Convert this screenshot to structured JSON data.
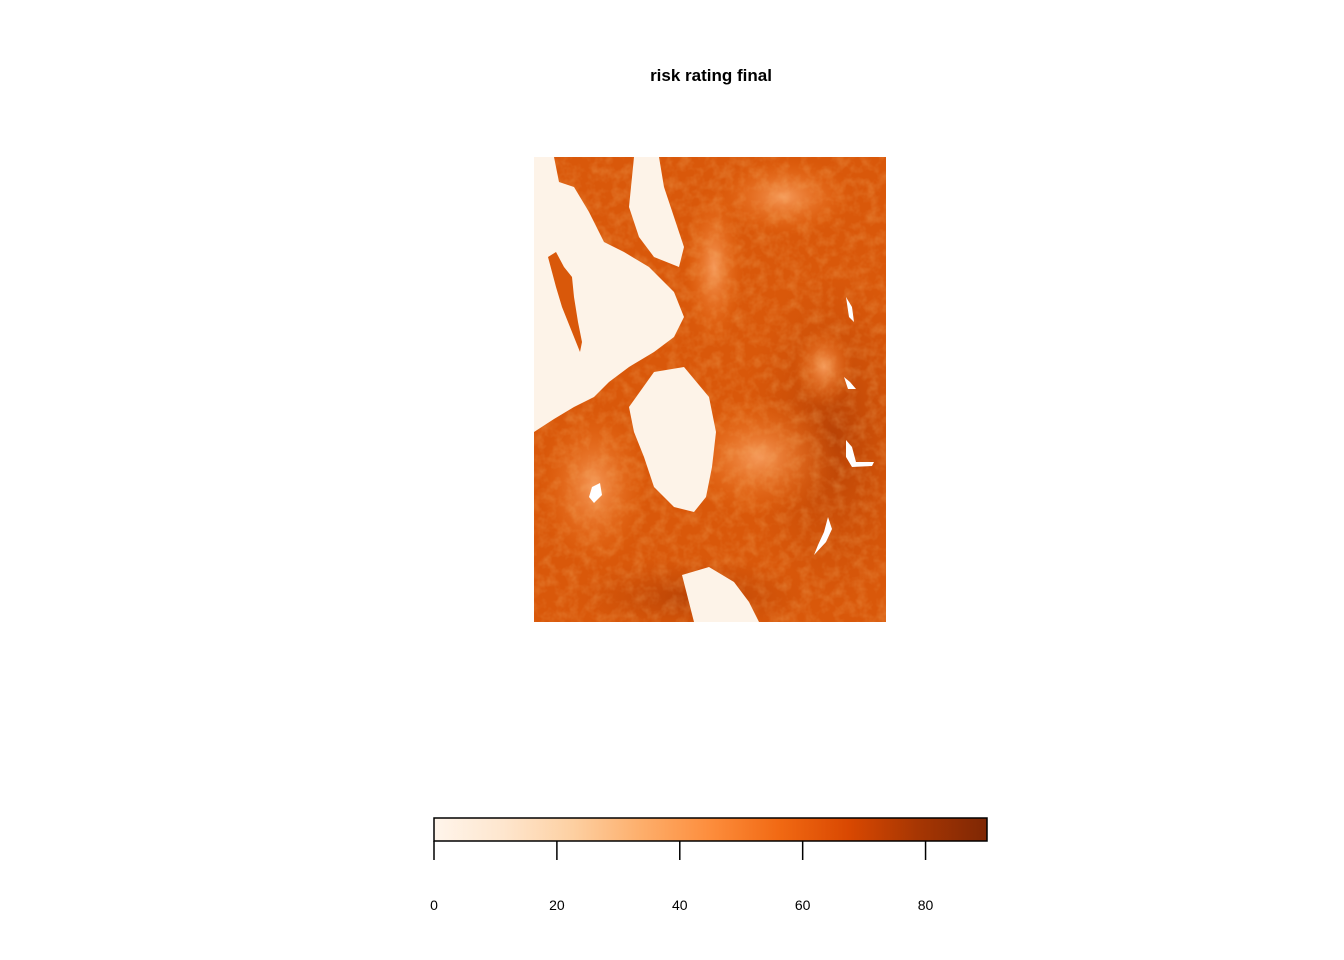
{
  "title": "risk rating final",
  "legend": {
    "min": 0,
    "max": 90,
    "ticks": [
      0,
      20,
      40,
      60,
      80
    ],
    "colors": [
      "#fff5eb",
      "#fee6ce",
      "#fdd0a2",
      "#fdae6b",
      "#fd8d3c",
      "#f16913",
      "#d94801",
      "#a63603",
      "#7f2704"
    ]
  },
  "map": {
    "low_color": "#fdf3e8",
    "mid_color": "#e8630e",
    "high_color": "#b94406",
    "white_patch_color": "#ffffff"
  }
}
